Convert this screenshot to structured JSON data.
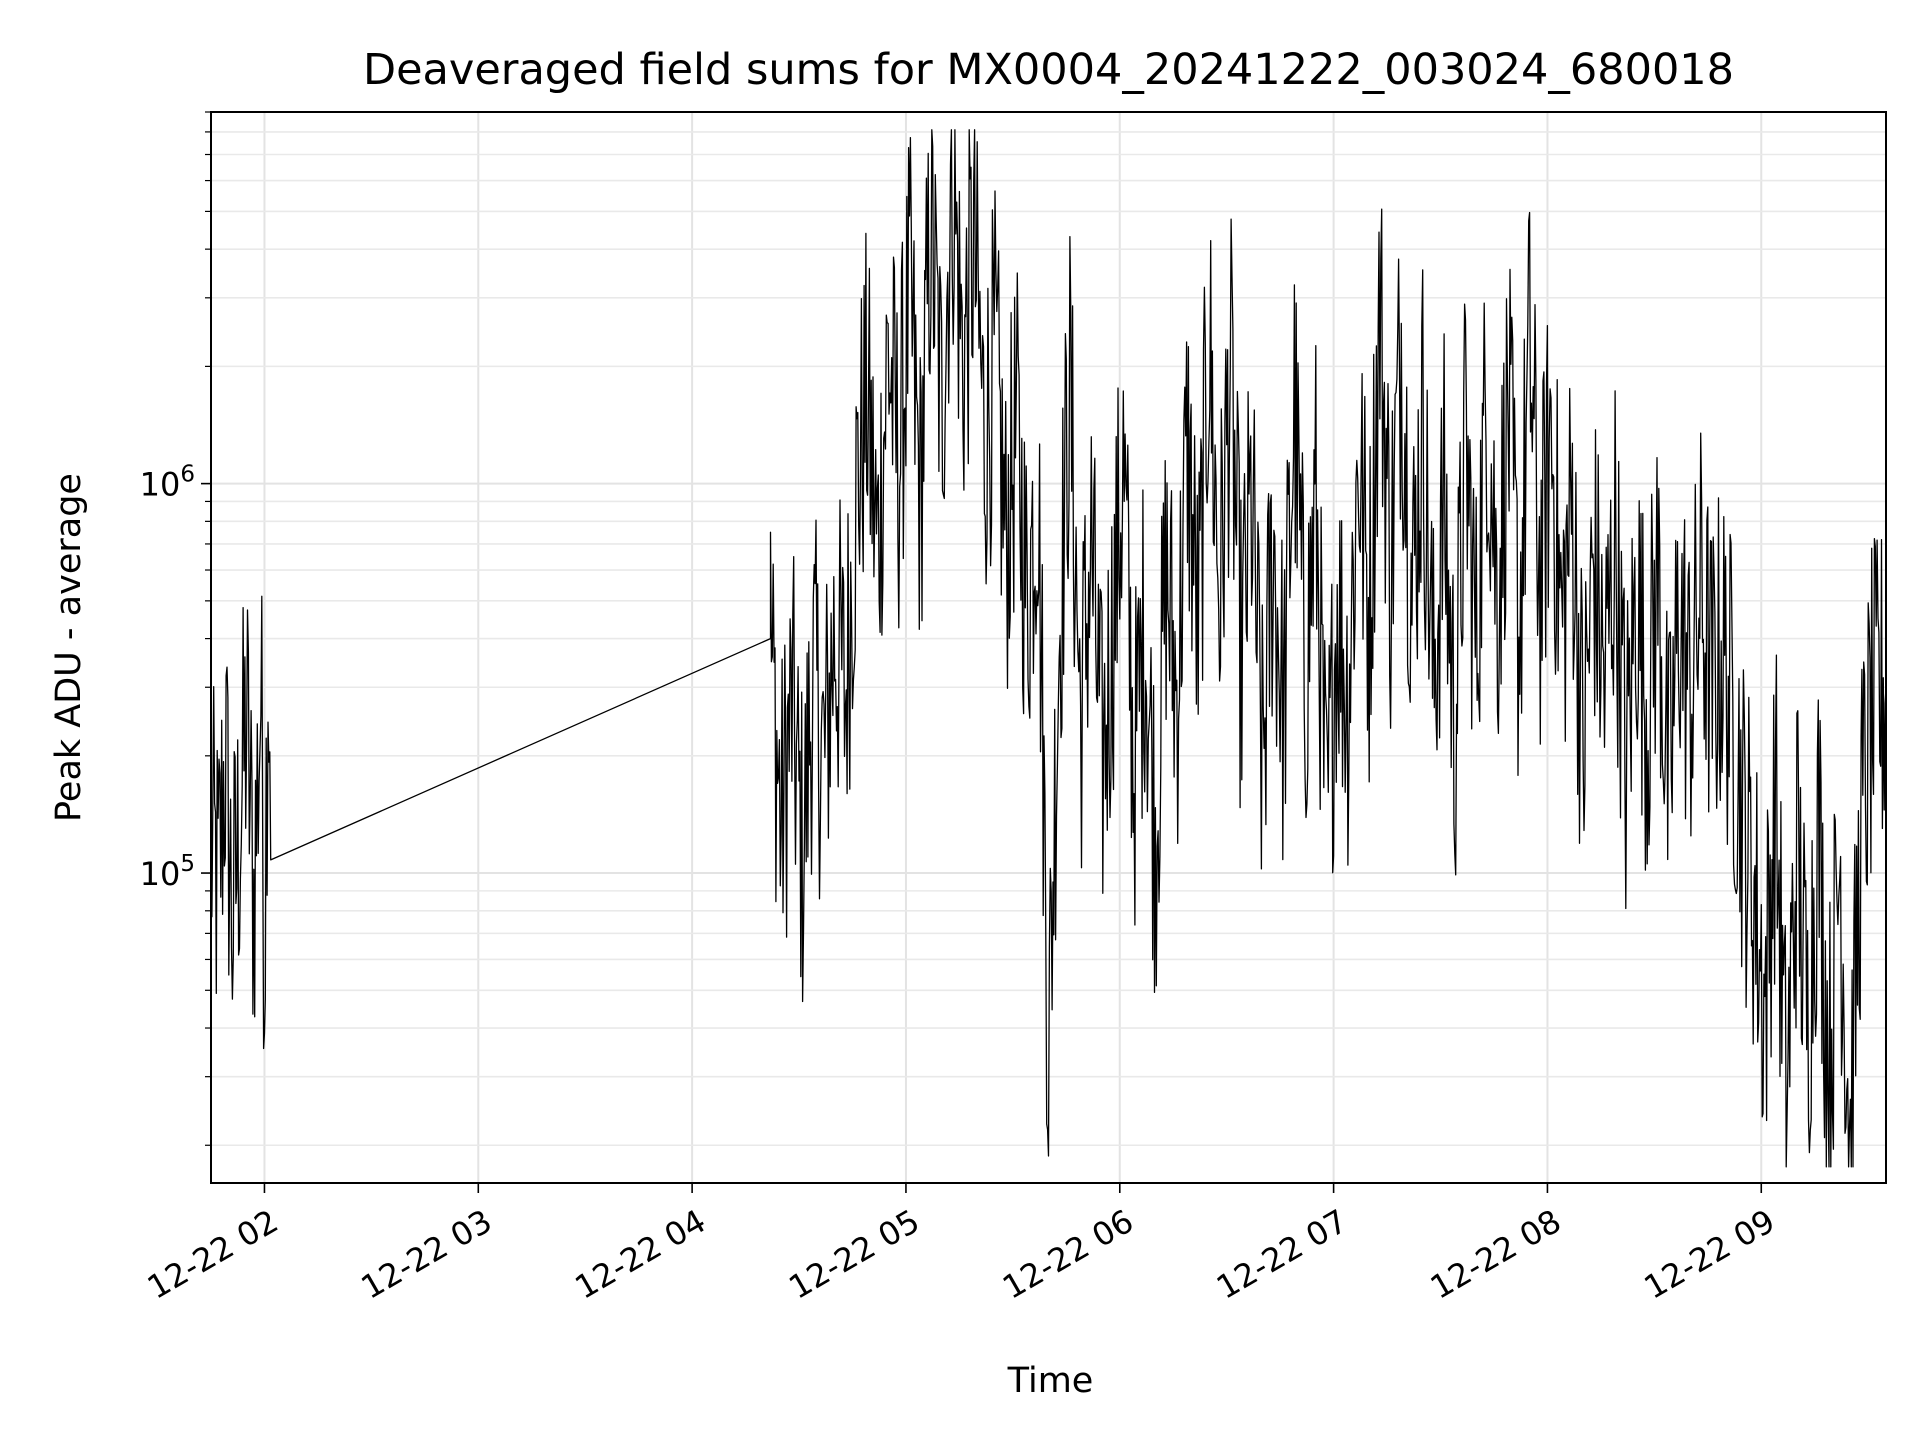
{
  "chart_data": {
    "type": "line",
    "title": "Deaveraged field sums for MX0004_20241222_003024_680018",
    "xlabel": "Time",
    "ylabel": "Peak ADU - average",
    "y_scale": "log",
    "grid": "both",
    "line_color": "#000000",
    "xlim": [
      "2024-12-22 01:45",
      "2024-12-22 09:35"
    ],
    "ylim": [
      16000,
      9000000
    ],
    "x_tick_labels": [
      "12-22 02",
      "12-22 03",
      "12-22 04",
      "12-22 05",
      "12-22 06",
      "12-22 07",
      "12-22 08",
      "12-22 09"
    ],
    "x_ticks": [
      "2024-12-22 02:00",
      "2024-12-22 03:00",
      "2024-12-22 04:00",
      "2024-12-22 05:00",
      "2024-12-22 06:00",
      "2024-12-22 07:00",
      "2024-12-22 08:00",
      "2024-12-22 09:00"
    ],
    "y_tick_labels": [
      {
        "value": 100000,
        "base": "10",
        "exp": "5"
      },
      {
        "value": 1000000,
        "base": "10",
        "exp": "6"
      }
    ],
    "series": [
      {
        "values_summary": "dense noisy time series sampled roughly every 15 s; peaks extend to about 6.5e6 near 05:10",
        "points": [
          [
            "2024-12-22 01:45",
            120000
          ],
          [
            "2024-12-22 01:47",
            90000
          ],
          [
            "2024-12-22 01:49",
            200000
          ],
          [
            "2024-12-22 01:51",
            75000
          ],
          [
            "2024-12-22 01:53",
            130000
          ],
          [
            "2024-12-22 01:55",
            250000
          ],
          [
            "2024-12-22 01:57",
            85000
          ],
          [
            "2024-12-22 01:59",
            300000
          ],
          [
            "2024-12-22 02:00",
            65000
          ],
          [
            "2024-12-22 02:01",
            380000
          ],
          [
            "2024-12-22 02:02",
            155000
          ],
          [
            "2024-12-22 04:22",
            400000
          ],
          [
            "2024-12-22 04:25",
            130000
          ],
          [
            "2024-12-22 04:28",
            270000
          ],
          [
            "2024-12-22 04:31",
            110000
          ],
          [
            "2024-12-22 04:34",
            330000
          ],
          [
            "2024-12-22 04:37",
            190000
          ],
          [
            "2024-12-22 04:40",
            420000
          ],
          [
            "2024-12-22 04:43",
            280000
          ],
          [
            "2024-12-22 04:46",
            900000
          ],
          [
            "2024-12-22 04:49",
            1700000
          ],
          [
            "2024-12-22 04:52",
            650000
          ],
          [
            "2024-12-22 04:55",
            2200000
          ],
          [
            "2024-12-22 04:58",
            1100000
          ],
          [
            "2024-12-22 05:01",
            3100000
          ],
          [
            "2024-12-22 05:04",
            900000
          ],
          [
            "2024-12-22 05:07",
            4800000
          ],
          [
            "2024-12-22 05:10",
            1500000
          ],
          [
            "2024-12-22 05:13",
            6500000
          ],
          [
            "2024-12-22 05:16",
            2000000
          ],
          [
            "2024-12-22 05:19",
            4200000
          ],
          [
            "2024-12-22 05:22",
            1300000
          ],
          [
            "2024-12-22 05:25",
            2100000
          ],
          [
            "2024-12-22 05:28",
            700000
          ],
          [
            "2024-12-22 05:31",
            1400000
          ],
          [
            "2024-12-22 05:34",
            480000
          ],
          [
            "2024-12-22 05:37",
            1100000
          ],
          [
            "2024-12-22 05:40",
            35000
          ],
          [
            "2024-12-22 05:43",
            420000
          ],
          [
            "2024-12-22 05:46",
            1800000
          ],
          [
            "2024-12-22 05:49",
            250000
          ],
          [
            "2024-12-22 05:52",
            700000
          ],
          [
            "2024-12-22 05:55",
            180000
          ],
          [
            "2024-12-22 05:58",
            420000
          ],
          [
            "2024-12-22 06:01",
            1100000
          ],
          [
            "2024-12-22 06:04",
            180000
          ],
          [
            "2024-12-22 06:07",
            450000
          ],
          [
            "2024-12-22 06:10",
            120000
          ],
          [
            "2024-12-22 06:13",
            600000
          ],
          [
            "2024-12-22 06:16",
            280000
          ],
          [
            "2024-12-22 06:19",
            1300000
          ],
          [
            "2024-12-22 06:22",
            400000
          ],
          [
            "2024-12-22 06:25",
            2400000
          ],
          [
            "2024-12-22 06:28",
            500000
          ],
          [
            "2024-12-22 06:31",
            2000000
          ],
          [
            "2024-12-22 06:34",
            350000
          ],
          [
            "2024-12-22 06:37",
            900000
          ],
          [
            "2024-12-22 06:40",
            180000
          ],
          [
            "2024-12-22 06:43",
            700000
          ],
          [
            "2024-12-22 06:46",
            250000
          ],
          [
            "2024-12-22 06:49",
            1600000
          ],
          [
            "2024-12-22 06:52",
            300000
          ],
          [
            "2024-12-22 06:55",
            900000
          ],
          [
            "2024-12-22 06:58",
            120000
          ],
          [
            "2024-12-22 07:01",
            500000
          ],
          [
            "2024-12-22 07:04",
            280000
          ],
          [
            "2024-12-22 07:07",
            1200000
          ],
          [
            "2024-12-22 07:10",
            450000
          ],
          [
            "2024-12-22 07:13",
            2900000
          ],
          [
            "2024-12-22 07:16",
            600000
          ],
          [
            "2024-12-22 07:19",
            2400000
          ],
          [
            "2024-12-22 07:22",
            500000
          ],
          [
            "2024-12-22 07:25",
            1500000
          ],
          [
            "2024-12-22 07:28",
            300000
          ],
          [
            "2024-12-22 07:31",
            900000
          ],
          [
            "2024-12-22 07:34",
            220000
          ],
          [
            "2024-12-22 07:37",
            1300000
          ],
          [
            "2024-12-22 07:40",
            380000
          ],
          [
            "2024-12-22 07:43",
            1800000
          ],
          [
            "2024-12-22 07:46",
            500000
          ],
          [
            "2024-12-22 07:49",
            1600000
          ],
          [
            "2024-12-22 07:52",
            400000
          ],
          [
            "2024-12-22 07:55",
            2200000
          ],
          [
            "2024-12-22 07:58",
            550000
          ],
          [
            "2024-12-22 08:01",
            1400000
          ],
          [
            "2024-12-22 08:04",
            420000
          ],
          [
            "2024-12-22 08:07",
            900000
          ],
          [
            "2024-12-22 08:10",
            200000
          ],
          [
            "2024-12-22 08:13",
            650000
          ],
          [
            "2024-12-22 08:16",
            300000
          ],
          [
            "2024-12-22 08:19",
            750000
          ],
          [
            "2024-12-22 08:22",
            180000
          ],
          [
            "2024-12-22 08:25",
            550000
          ],
          [
            "2024-12-22 08:28",
            250000
          ],
          [
            "2024-12-22 08:31",
            600000
          ],
          [
            "2024-12-22 08:34",
            150000
          ],
          [
            "2024-12-22 08:37",
            480000
          ],
          [
            "2024-12-22 08:40",
            280000
          ],
          [
            "2024-12-22 08:43",
            520000
          ],
          [
            "2024-12-22 08:46",
            300000
          ],
          [
            "2024-12-22 08:49",
            380000
          ],
          [
            "2024-12-22 08:52",
            260000
          ],
          [
            "2024-12-22 08:55",
            140000
          ],
          [
            "2024-12-22 08:58",
            90000
          ],
          [
            "2024-12-22 09:01",
            45000
          ],
          [
            "2024-12-22 09:04",
            160000
          ],
          [
            "2024-12-22 09:07",
            25000
          ],
          [
            "2024-12-22 09:10",
            120000
          ],
          [
            "2024-12-22 09:13",
            40000
          ],
          [
            "2024-12-22 09:16",
            140000
          ],
          [
            "2024-12-22 09:19",
            30000
          ],
          [
            "2024-12-22 09:22",
            110000
          ],
          [
            "2024-12-22 09:25",
            20000
          ],
          [
            "2024-12-22 09:28",
            130000
          ],
          [
            "2024-12-22 09:31",
            250000
          ],
          [
            "2024-12-22 09:35",
            300000
          ]
        ]
      }
    ]
  }
}
